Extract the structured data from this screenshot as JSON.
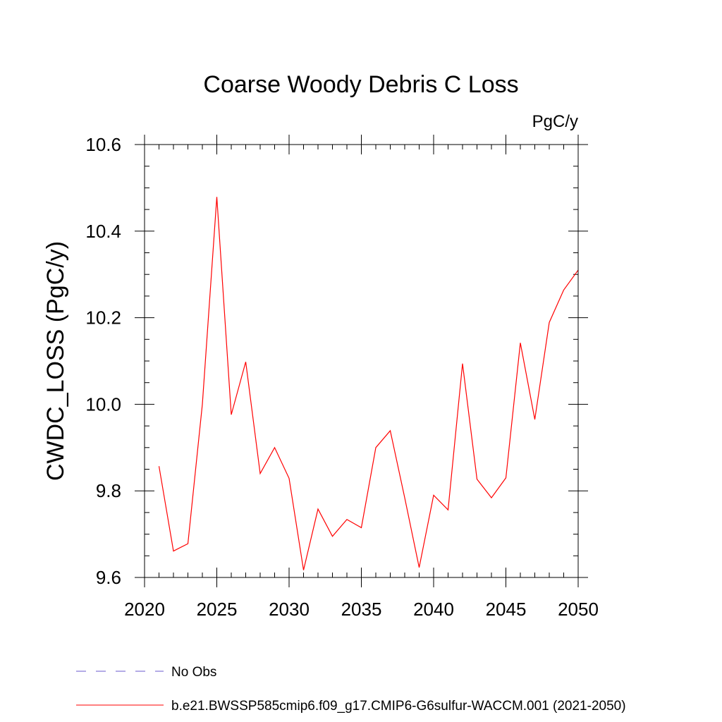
{
  "chart_data": {
    "type": "line",
    "title": "Coarse Woody Debris C Loss",
    "units_label": "PgC/y",
    "ylabel": "CWDC_LOSS  (PgC/y)",
    "xlabel": "",
    "xlim": [
      2020,
      2050
    ],
    "ylim": [
      9.6,
      10.6
    ],
    "x_ticks": [
      2020,
      2025,
      2030,
      2035,
      2040,
      2045,
      2050
    ],
    "x_tick_labels": [
      "2020",
      "2025",
      "2030",
      "2035",
      "2040",
      "2045",
      "2050"
    ],
    "y_ticks": [
      9.6,
      9.8,
      10.0,
      10.2,
      10.4,
      10.6
    ],
    "y_tick_labels": [
      "9.6",
      "9.8",
      "10.0",
      "10.2",
      "10.4",
      "10.6"
    ],
    "grid": false,
    "legend_placement": "bottom",
    "legend": [
      {
        "label": "No Obs",
        "color": "#6a5acd",
        "style": "dashed"
      },
      {
        "label": "b.e21.BWSSP585cmip6.f09_g17.CMIP6-G6sulfur-WACCM.001 (2021-2050)",
        "color": "#ff0000",
        "style": "solid"
      }
    ],
    "series": [
      {
        "name": "b.e21.BWSSP585cmip6.f09_g17.CMIP6-G6sulfur-WACCM.001 (2021-2050)",
        "color": "#ff0000",
        "x": [
          2021,
          2022,
          2023,
          2024,
          2025,
          2026,
          2027,
          2028,
          2029,
          2030,
          2031,
          2032,
          2033,
          2034,
          2035,
          2036,
          2037,
          2038,
          2039,
          2040,
          2041,
          2042,
          2043,
          2044,
          2045,
          2046,
          2047,
          2048,
          2049,
          2050
        ],
        "y": [
          9.857,
          9.661,
          9.678,
          10.0,
          10.479,
          9.976,
          10.098,
          9.84,
          9.9,
          9.829,
          9.617,
          9.758,
          9.695,
          9.734,
          9.715,
          9.9,
          9.939,
          9.784,
          9.623,
          9.79,
          9.756,
          10.094,
          9.827,
          9.784,
          9.83,
          10.142,
          9.965,
          10.189,
          10.264,
          10.31
        ]
      }
    ]
  }
}
